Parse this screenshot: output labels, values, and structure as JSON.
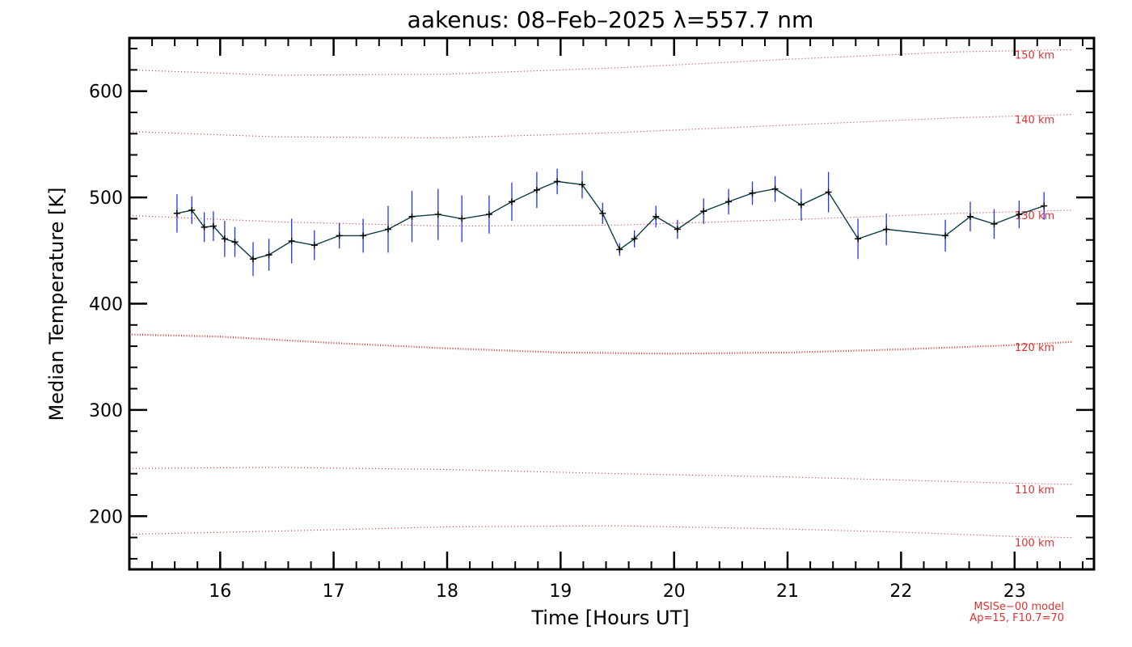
{
  "chart_data": {
    "type": "line",
    "title": "aakenus: 08–Feb–2025 λ=557.7 nm",
    "xlabel": "Time [Hours UT]",
    "ylabel": "Median Temperature [K]",
    "xlim": [
      15.2,
      23.7
    ],
    "ylim": [
      150,
      650
    ],
    "x_ticks": [
      16,
      17,
      18,
      19,
      20,
      21,
      22,
      23
    ],
    "x_tick_labels": [
      "16",
      "17",
      "18",
      "19",
      "20",
      "21",
      "22",
      "23"
    ],
    "y_ticks": [
      200,
      300,
      400,
      500,
      600
    ],
    "y_tick_labels": [
      "200",
      "300",
      "400",
      "500",
      "600"
    ],
    "series": [
      {
        "name": "Median temperature",
        "color": "#0b3d4a",
        "marker": "plus",
        "error_color": "#2233ee",
        "points": [
          {
            "x": 15.62,
            "y": 485,
            "err": 18
          },
          {
            "x": 15.75,
            "y": 488,
            "err": 13
          },
          {
            "x": 15.86,
            "y": 472,
            "err": 14
          },
          {
            "x": 15.94,
            "y": 473,
            "err": 14
          },
          {
            "x": 16.04,
            "y": 461,
            "err": 17
          },
          {
            "x": 16.13,
            "y": 458,
            "err": 14
          },
          {
            "x": 16.29,
            "y": 442,
            "err": 16
          },
          {
            "x": 16.43,
            "y": 446,
            "err": 15
          },
          {
            "x": 16.63,
            "y": 459,
            "err": 21
          },
          {
            "x": 16.83,
            "y": 455,
            "err": 14
          },
          {
            "x": 17.05,
            "y": 464,
            "err": 12
          },
          {
            "x": 17.26,
            "y": 464,
            "err": 16
          },
          {
            "x": 17.48,
            "y": 470,
            "err": 22
          },
          {
            "x": 17.69,
            "y": 482,
            "err": 24
          },
          {
            "x": 17.92,
            "y": 484,
            "err": 24
          },
          {
            "x": 18.13,
            "y": 480,
            "err": 22
          },
          {
            "x": 18.37,
            "y": 484,
            "err": 18
          },
          {
            "x": 18.57,
            "y": 496,
            "err": 18
          },
          {
            "x": 18.79,
            "y": 507,
            "err": 17
          },
          {
            "x": 18.97,
            "y": 515,
            "err": 12
          },
          {
            "x": 19.19,
            "y": 512,
            "err": 13
          },
          {
            "x": 19.37,
            "y": 485,
            "err": 10
          },
          {
            "x": 19.52,
            "y": 451,
            "err": 6
          },
          {
            "x": 19.65,
            "y": 461,
            "err": 8
          },
          {
            "x": 19.84,
            "y": 482,
            "err": 10
          },
          {
            "x": 20.03,
            "y": 470,
            "err": 9
          },
          {
            "x": 20.26,
            "y": 487,
            "err": 12
          },
          {
            "x": 20.48,
            "y": 496,
            "err": 12
          },
          {
            "x": 20.69,
            "y": 504,
            "err": 11
          },
          {
            "x": 20.89,
            "y": 508,
            "err": 12
          },
          {
            "x": 21.12,
            "y": 493,
            "err": 15
          },
          {
            "x": 21.36,
            "y": 505,
            "err": 19
          },
          {
            "x": 21.62,
            "y": 461,
            "err": 19
          },
          {
            "x": 21.87,
            "y": 470,
            "err": 15
          },
          {
            "x": 22.39,
            "y": 464,
            "err": 15
          },
          {
            "x": 22.61,
            "y": 482,
            "err": 14
          },
          {
            "x": 22.82,
            "y": 475,
            "err": 14
          },
          {
            "x": 23.04,
            "y": 484,
            "err": 13
          },
          {
            "x": 23.26,
            "y": 492,
            "err": 13
          }
        ]
      }
    ],
    "model_curves": [
      {
        "label": "100 km",
        "color": "#e03030",
        "x": [
          15.2,
          16.5,
          18.0,
          19.5,
          21.0,
          22.0,
          23.0,
          23.5
        ],
        "y": [
          183,
          186,
          190,
          191,
          188,
          185,
          181,
          180
        ]
      },
      {
        "label": "110 km",
        "color": "#e03030",
        "x": [
          15.2,
          16.5,
          18.0,
          19.5,
          21.0,
          22.0,
          23.0,
          23.5
        ],
        "y": [
          245,
          246,
          244,
          240,
          237,
          234,
          231,
          230
        ]
      },
      {
        "label": "120 km",
        "color": "#e03030",
        "x": [
          15.2,
          16.0,
          17.0,
          18.0,
          19.0,
          20.0,
          21.0,
          22.0,
          23.0,
          23.5
        ],
        "y": [
          371,
          369,
          363,
          358,
          354,
          353,
          354,
          357,
          361,
          364
        ]
      },
      {
        "label": "130 km",
        "color": "#e03030",
        "x": [
          15.2,
          16.5,
          18.0,
          19.5,
          21.0,
          22.5,
          23.5
        ],
        "y": [
          483,
          477,
          473,
          474,
          479,
          485,
          488
        ]
      },
      {
        "label": "140 km",
        "color": "#e03030",
        "x": [
          15.2,
          16.5,
          18.0,
          19.5,
          21.0,
          22.5,
          23.5
        ],
        "y": [
          562,
          557,
          556,
          561,
          568,
          575,
          578
        ]
      },
      {
        "label": "150 km",
        "color": "#e03030",
        "x": [
          15.2,
          16.5,
          18.0,
          19.5,
          21.0,
          22.5,
          23.5
        ],
        "y": [
          620,
          615,
          616,
          622,
          630,
          637,
          639
        ]
      }
    ],
    "annotations": [
      "MSISe−00 model",
      "Ap=15, F10.7=70"
    ]
  }
}
